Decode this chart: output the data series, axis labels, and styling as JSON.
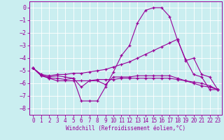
{
  "xlabel": "Windchill (Refroidissement éolien,°C)",
  "bg_color": "#caeef0",
  "line_color": "#990099",
  "grid_color": "#ffffff",
  "ylim": [
    -8.5,
    0.5
  ],
  "xlim": [
    -0.5,
    23.5
  ],
  "yticks": [
    0,
    -1,
    -2,
    -3,
    -4,
    -5,
    -6,
    -7,
    -8
  ],
  "xticks": [
    0,
    1,
    2,
    3,
    4,
    5,
    6,
    7,
    8,
    9,
    10,
    11,
    12,
    13,
    14,
    15,
    16,
    17,
    18,
    19,
    20,
    21,
    22,
    23
  ],
  "lines": [
    {
      "x": [
        0,
        1,
        2,
        3,
        4,
        5,
        6,
        7,
        8,
        9,
        10,
        11,
        12,
        13,
        14,
        15,
        16,
        17,
        18,
        19,
        20,
        21,
        22,
        23
      ],
      "y": [
        -4.8,
        -5.4,
        -5.5,
        -5.4,
        -5.5,
        -5.6,
        -7.4,
        -7.4,
        -7.4,
        -6.3,
        -5.1,
        -3.8,
        -3.0,
        -1.2,
        -0.2,
        0.0,
        0.0,
        -0.7,
        -2.6,
        -4.1,
        -5.3,
        -5.5,
        -6.5,
        -6.5
      ]
    },
    {
      "x": [
        0,
        1,
        2,
        3,
        4,
        5,
        6,
        7,
        8,
        9,
        10,
        11,
        12,
        13,
        14,
        15,
        16,
        17,
        18,
        19,
        20,
        21,
        22,
        23
      ],
      "y": [
        -4.8,
        -5.3,
        -5.4,
        -5.3,
        -5.3,
        -5.2,
        -5.2,
        -5.1,
        -5.0,
        -4.9,
        -4.7,
        -4.5,
        -4.3,
        -4.0,
        -3.7,
        -3.4,
        -3.1,
        -2.8,
        -2.5,
        -4.2,
        -4.0,
        -5.3,
        -5.5,
        -6.5
      ]
    },
    {
      "x": [
        0,
        1,
        2,
        3,
        4,
        5,
        6,
        7,
        8,
        9,
        10,
        11,
        12,
        13,
        14,
        15,
        16,
        17,
        18,
        19,
        20,
        21,
        22,
        23
      ],
      "y": [
        -4.8,
        -5.3,
        -5.6,
        -5.8,
        -5.8,
        -5.8,
        -5.8,
        -5.8,
        -5.7,
        -5.7,
        -5.7,
        -5.6,
        -5.6,
        -5.6,
        -5.6,
        -5.6,
        -5.6,
        -5.6,
        -5.7,
        -5.8,
        -5.9,
        -6.0,
        -6.2,
        -6.5
      ]
    },
    {
      "x": [
        0,
        1,
        2,
        3,
        4,
        5,
        6,
        7,
        8,
        9,
        10,
        11,
        12,
        13,
        14,
        15,
        16,
        17,
        18,
        19,
        20,
        21,
        22,
        23
      ],
      "y": [
        -4.8,
        -5.4,
        -5.6,
        -5.6,
        -5.7,
        -5.6,
        -6.3,
        -5.8,
        -5.8,
        -6.1,
        -5.5,
        -5.5,
        -5.5,
        -5.4,
        -5.4,
        -5.4,
        -5.4,
        -5.4,
        -5.6,
        -5.8,
        -6.0,
        -6.2,
        -6.3,
        -6.5
      ]
    }
  ]
}
